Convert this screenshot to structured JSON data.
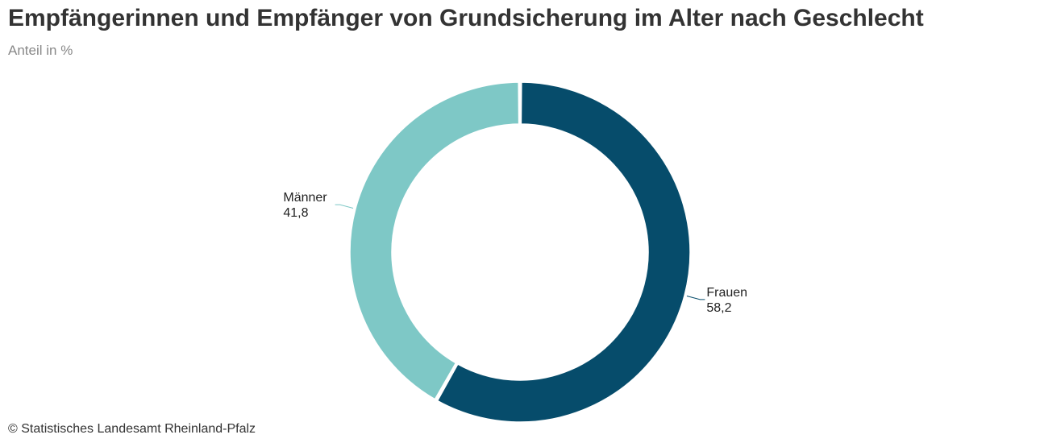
{
  "chart_data": {
    "type": "pie",
    "title": "Empfängerinnen und Empfänger von Grundsicherung im Alter nach Geschlecht",
    "subtitle": "Anteil in %",
    "donut": true,
    "slices": [
      {
        "name": "Frauen",
        "value": 58.2,
        "value_label": "58,2",
        "color": "#064c6b"
      },
      {
        "name": "Männer",
        "value": 41.8,
        "value_label": "41,8",
        "color": "#7ec8c6"
      }
    ],
    "start_angle_deg": 0,
    "direction": "clockwise"
  },
  "source": "© Statistisches Landesamt Rheinland-Pfalz"
}
